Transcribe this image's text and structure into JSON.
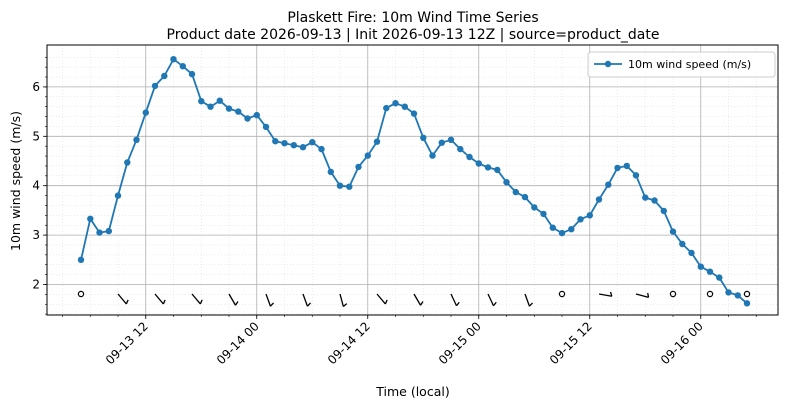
{
  "chart_data": {
    "type": "line",
    "title": "Plaskett Fire: 10m Wind Time Series",
    "subtitle": "Product date 2026-09-13 | Init 2026-09-13 12Z | source=product_date",
    "xlabel": "Time (local)",
    "ylabel": "10m wind speed (m/s)",
    "grid": true,
    "legend_position": "top-right",
    "x_ticks": [
      "09-13 12",
      "09-14 00",
      "09-14 12",
      "09-15 00",
      "09-15 12",
      "09-16 00"
    ],
    "y_ticks": [
      "2",
      "3",
      "4",
      "5",
      "6"
    ],
    "series": [
      {
        "name": "10m wind speed (m/s)",
        "color": "#1f77b4",
        "x": [
          "2026-09-13 05:00",
          "2026-09-13 06:00",
          "2026-09-13 07:00",
          "2026-09-13 08:00",
          "2026-09-13 09:00",
          "2026-09-13 10:00",
          "2026-09-13 11:00",
          "2026-09-13 12:00",
          "2026-09-13 13:00",
          "2026-09-13 14:00",
          "2026-09-13 15:00",
          "2026-09-13 16:00",
          "2026-09-13 17:00",
          "2026-09-13 18:00",
          "2026-09-13 19:00",
          "2026-09-13 20:00",
          "2026-09-13 21:00",
          "2026-09-13 22:00",
          "2026-09-13 23:00",
          "2026-09-14 00:00",
          "2026-09-14 01:00",
          "2026-09-14 02:00",
          "2026-09-14 03:00",
          "2026-09-14 04:00",
          "2026-09-14 05:00",
          "2026-09-14 06:00",
          "2026-09-14 07:00",
          "2026-09-14 08:00",
          "2026-09-14 09:00",
          "2026-09-14 10:00",
          "2026-09-14 11:00",
          "2026-09-14 12:00",
          "2026-09-14 13:00",
          "2026-09-14 14:00",
          "2026-09-14 15:00",
          "2026-09-14 16:00",
          "2026-09-14 17:00",
          "2026-09-14 18:00",
          "2026-09-14 19:00",
          "2026-09-14 20:00",
          "2026-09-14 21:00",
          "2026-09-14 22:00",
          "2026-09-14 23:00",
          "2026-09-15 00:00",
          "2026-09-15 01:00",
          "2026-09-15 02:00",
          "2026-09-15 03:00",
          "2026-09-15 04:00",
          "2026-09-15 05:00",
          "2026-09-15 06:00",
          "2026-09-15 07:00",
          "2026-09-15 08:00",
          "2026-09-15 09:00",
          "2026-09-15 10:00",
          "2026-09-15 11:00",
          "2026-09-15 12:00",
          "2026-09-15 13:00",
          "2026-09-15 14:00",
          "2026-09-15 15:00",
          "2026-09-15 16:00",
          "2026-09-15 17:00",
          "2026-09-15 18:00",
          "2026-09-15 19:00",
          "2026-09-15 20:00",
          "2026-09-15 21:00",
          "2026-09-15 22:00",
          "2026-09-15 23:00",
          "2026-09-16 00:00",
          "2026-09-16 01:00",
          "2026-09-16 02:00",
          "2026-09-16 03:00",
          "2026-09-16 04:00",
          "2026-09-16 05:00"
        ],
        "values": [
          2.5,
          3.33,
          3.05,
          3.08,
          3.8,
          4.47,
          4.93,
          5.48,
          6.02,
          6.22,
          6.56,
          6.42,
          6.26,
          5.71,
          5.6,
          5.72,
          5.56,
          5.5,
          5.36,
          5.43,
          5.19,
          4.9,
          4.86,
          4.82,
          4.78,
          4.88,
          4.74,
          4.28,
          4.0,
          3.98,
          4.38,
          4.61,
          4.89,
          5.57,
          5.67,
          5.6,
          5.46,
          4.97,
          4.61,
          4.87,
          4.93,
          4.74,
          4.58,
          4.45,
          4.37,
          4.32,
          4.07,
          3.87,
          3.77,
          3.56,
          3.43,
          3.15,
          3.04,
          3.12,
          3.32,
          3.4,
          3.72,
          4.02,
          4.36,
          4.4,
          4.21,
          3.76,
          3.7,
          3.49,
          3.07,
          2.82,
          2.64,
          2.36,
          2.26,
          2.14,
          1.84,
          1.78,
          1.62
        ]
      }
    ],
    "wind_barbs": [
      {
        "time": "2026-09-13 05:00",
        "calm": true
      },
      {
        "time": "2026-09-13 09:00",
        "dir_deg": 320,
        "speed": 3.8
      },
      {
        "time": "2026-09-13 13:00",
        "dir_deg": 320,
        "speed": 6.0
      },
      {
        "time": "2026-09-13 17:00",
        "dir_deg": 320,
        "speed": 6.3
      },
      {
        "time": "2026-09-13 21:00",
        "dir_deg": 330,
        "speed": 5.6
      },
      {
        "time": "2026-09-14 01:00",
        "dir_deg": 340,
        "speed": 5.2
      },
      {
        "time": "2026-09-14 05:00",
        "dir_deg": 340,
        "speed": 4.8
      },
      {
        "time": "2026-09-14 09:00",
        "dir_deg": 345,
        "speed": 4.0
      },
      {
        "time": "2026-09-14 13:00",
        "dir_deg": 320,
        "speed": 4.9
      },
      {
        "time": "2026-09-14 17:00",
        "dir_deg": 330,
        "speed": 5.5
      },
      {
        "time": "2026-09-14 21:00",
        "dir_deg": 335,
        "speed": 4.9
      },
      {
        "time": "2026-09-15 01:00",
        "dir_deg": 335,
        "speed": 4.4
      },
      {
        "time": "2026-09-15 05:00",
        "dir_deg": 340,
        "speed": 3.8
      },
      {
        "time": "2026-09-15 09:00",
        "calm": true
      },
      {
        "time": "2026-09-15 13:00",
        "dir_deg": 280,
        "speed": 3.7
      },
      {
        "time": "2026-09-15 17:00",
        "dir_deg": 285,
        "speed": 4.2
      },
      {
        "time": "2026-09-15 21:00",
        "calm": true
      },
      {
        "time": "2026-09-16 01:00",
        "calm": true
      },
      {
        "time": "2026-09-16 05:00",
        "calm": true
      }
    ]
  }
}
